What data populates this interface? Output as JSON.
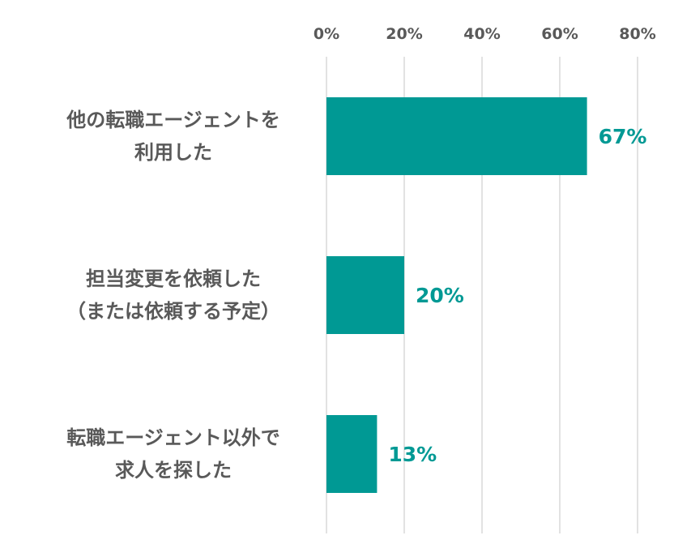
{
  "chart_data": {
    "type": "bar",
    "orientation": "horizontal",
    "categories": [
      [
        "他の転職エージェントを",
        "利用した"
      ],
      [
        "担当変更を依頼した",
        "（または依頼する予定）"
      ],
      [
        "転職エージェント以外で",
        "求人を探した"
      ]
    ],
    "values": [
      67,
      20,
      13
    ],
    "data_labels": [
      "67%",
      "20%",
      "13%"
    ],
    "x_ticks": [
      "0%",
      "20%",
      "40%",
      "60%",
      "80%"
    ],
    "xlim": [
      0,
      80
    ],
    "axis_position": "top",
    "grid": true,
    "legend": "none",
    "bar_color": "#009994",
    "label_color": "#009994",
    "title": "",
    "xlabel": "",
    "ylabel": ""
  }
}
